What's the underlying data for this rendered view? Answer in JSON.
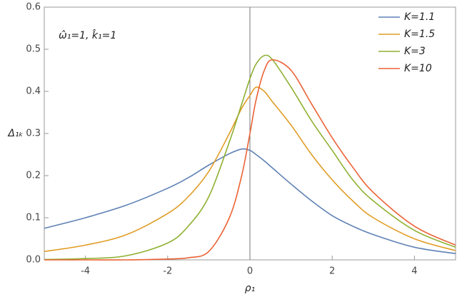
{
  "chart_data": {
    "type": "line",
    "annotation": "ω̂₁=1, k̂₁=1",
    "x_label": "ρ₁",
    "y_label": "Δ₁ₖ",
    "x": [
      -5,
      -4,
      -3,
      -2,
      -1.5,
      -1,
      -0.5,
      -0.2,
      0,
      0.15,
      0.35,
      0.55,
      1,
      1.5,
      2,
      2.5,
      3,
      4,
      5
    ],
    "series": [
      {
        "name": "K=1.1",
        "color": "#5e81b5",
        "values": [
          0.075,
          0.1,
          0.13,
          0.17,
          0.195,
          0.225,
          0.252,
          0.263,
          0.26,
          0.25,
          0.235,
          0.218,
          0.18,
          0.14,
          0.105,
          0.08,
          0.06,
          0.03,
          0.015
        ]
      },
      {
        "name": "K=1.5",
        "color": "#e19c24",
        "values": [
          0.02,
          0.035,
          0.06,
          0.11,
          0.15,
          0.21,
          0.3,
          0.36,
          0.39,
          0.41,
          0.4,
          0.375,
          0.32,
          0.25,
          0.19,
          0.14,
          0.1,
          0.05,
          0.022
        ]
      },
      {
        "name": "K=3",
        "color": "#8fb032",
        "values": [
          0.001,
          0.003,
          0.01,
          0.04,
          0.08,
          0.15,
          0.28,
          0.37,
          0.43,
          0.465,
          0.485,
          0.475,
          0.41,
          0.33,
          0.26,
          0.19,
          0.14,
          0.07,
          0.03
        ]
      },
      {
        "name": "K=10",
        "color": "#eb6235",
        "values": [
          0,
          0,
          0,
          0.002,
          0.005,
          0.02,
          0.1,
          0.2,
          0.3,
          0.38,
          0.45,
          0.475,
          0.45,
          0.37,
          0.29,
          0.22,
          0.16,
          0.08,
          0.035
        ]
      }
    ],
    "xlim": [
      -5,
      5
    ],
    "ylim": [
      0,
      0.6
    ],
    "xticks": [
      -4,
      -2,
      0,
      2,
      4
    ],
    "yticks": [
      {
        "value": 0,
        "label": "0.0"
      },
      0.1,
      0.2,
      0.3,
      0.4,
      0.5,
      0.6
    ],
    "legend": "top-right"
  }
}
